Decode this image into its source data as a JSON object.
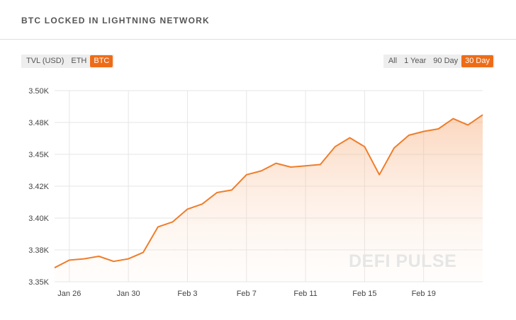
{
  "header": {
    "title": "BTC LOCKED IN LIGHTNING NETWORK"
  },
  "currency_toggle": {
    "options": [
      {
        "label": "TVL (USD)",
        "active": false
      },
      {
        "label": "ETH",
        "active": false
      },
      {
        "label": "BTC",
        "active": true
      }
    ]
  },
  "range_toggle": {
    "options": [
      {
        "label": "All",
        "active": false
      },
      {
        "label": "1 Year",
        "active": false
      },
      {
        "label": "90 Day",
        "active": false
      },
      {
        "label": "30 Day",
        "active": true
      }
    ]
  },
  "watermark": "DEFI PULSE",
  "colors": {
    "accent": "#ee6c17",
    "line": "#ef7d2a",
    "grid": "#e6e6e6"
  },
  "chart_data": {
    "type": "area",
    "title": "BTC LOCKED IN LIGHTNING NETWORK",
    "xlabel": "",
    "ylabel": "",
    "ylim": [
      3350,
      3500
    ],
    "y_ticks": [
      3350,
      3375,
      3400,
      3425,
      3450,
      3475,
      3500
    ],
    "y_tick_labels": [
      "3.35K",
      "3.38K",
      "3.40K",
      "3.42K",
      "3.45K",
      "3.48K",
      "3.50K"
    ],
    "x_tick_labels": [
      "Jan 26",
      "Jan 30",
      "Feb 3",
      "Feb 7",
      "Feb 11",
      "Feb 15",
      "Feb 19"
    ],
    "x_tick_dates": [
      "2020-01-26",
      "2020-01-30",
      "2020-02-03",
      "2020-02-07",
      "2020-02-11",
      "2020-02-15",
      "2020-02-19"
    ],
    "grid": true,
    "series": [
      {
        "x": [
          "2020-01-25",
          "2020-01-26",
          "2020-01-27",
          "2020-01-28",
          "2020-01-29",
          "2020-01-30",
          "2020-01-31",
          "2020-02-01",
          "2020-02-02",
          "2020-02-03",
          "2020-02-04",
          "2020-02-05",
          "2020-02-06",
          "2020-02-07",
          "2020-02-08",
          "2020-02-09",
          "2020-02-10",
          "2020-02-11",
          "2020-02-12",
          "2020-02-13",
          "2020-02-14",
          "2020-02-15",
          "2020-02-16",
          "2020-02-17",
          "2020-02-18",
          "2020-02-19",
          "2020-02-20",
          "2020-02-21",
          "2020-02-22",
          "2020-02-23"
        ],
        "values": [
          3361,
          3367,
          3368,
          3370,
          3366,
          3368,
          3373,
          3393,
          3397,
          3407,
          3411,
          3420,
          3422,
          3434,
          3437,
          3443,
          3440,
          3441,
          3442,
          3456,
          3463,
          3456,
          3434,
          3455,
          3465,
          3468,
          3470,
          3478,
          3473,
          3481
        ]
      }
    ]
  }
}
